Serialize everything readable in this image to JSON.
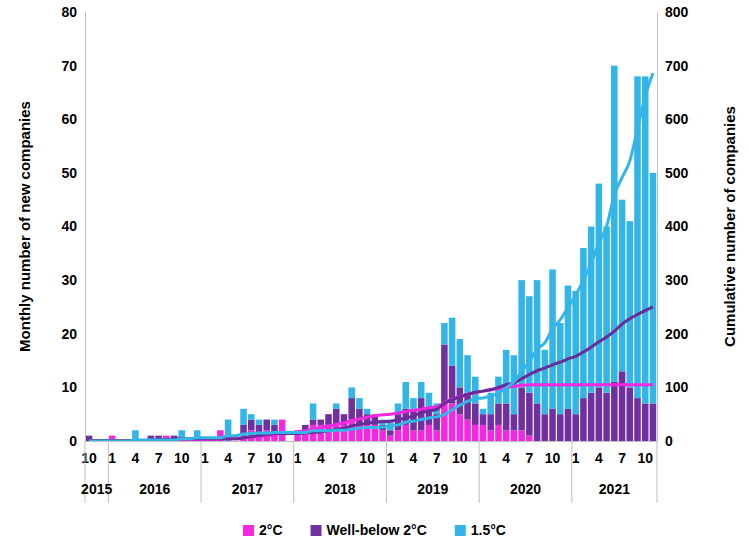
{
  "chart_data": {
    "type": "bar",
    "stacked": true,
    "grid": false,
    "legend": "bottom",
    "y_label": "Monthly number of new companies",
    "y2_label": "Cumulative number of companies",
    "categories": [
      "10",
      null,
      null,
      "1",
      null,
      null,
      "4",
      null,
      null,
      "7",
      null,
      null,
      "10",
      null,
      null,
      "1",
      null,
      null,
      "4",
      null,
      null,
      "7",
      null,
      null,
      "10",
      null,
      null,
      "1",
      null,
      null,
      "4",
      null,
      null,
      "7",
      null,
      null,
      "10",
      null,
      null,
      "1",
      null,
      null,
      "4",
      null,
      null,
      "7",
      null,
      null,
      "10",
      null,
      null,
      "1",
      null,
      null,
      "4",
      null,
      null,
      "7",
      null,
      null,
      "10",
      null,
      null,
      "1",
      null,
      null,
      "4",
      null,
      null,
      "7",
      null,
      null,
      "10",
      null
    ],
    "groups": [
      {
        "label": "2015",
        "count": 3
      },
      {
        "label": "2016",
        "count": 12
      },
      {
        "label": "2017",
        "count": 12
      },
      {
        "label": "2018",
        "count": 12
      },
      {
        "label": "2019",
        "count": 12
      },
      {
        "label": "2020",
        "count": 12
      },
      {
        "label": "2021",
        "count": 11
      }
    ],
    "ylim": [
      0,
      80
    ],
    "yticks": [
      0,
      10,
      20,
      30,
      40,
      50,
      60,
      70,
      80
    ],
    "y2lim": [
      0,
      800
    ],
    "y2ticks": [
      0,
      100,
      200,
      300,
      400,
      500,
      600,
      700,
      800
    ],
    "series": [
      {
        "name": "2°C",
        "type": "bar",
        "color": "#f527e0",
        "values": [
          0,
          0,
          0,
          1,
          0,
          0,
          0,
          0,
          0,
          0,
          1,
          0,
          0,
          0,
          0,
          0,
          0,
          2,
          0,
          0,
          1,
          2,
          1,
          2,
          1,
          4,
          0,
          2,
          2,
          3,
          3,
          3,
          3,
          3,
          4,
          3,
          3,
          3,
          2,
          1,
          2,
          3,
          2,
          2,
          3,
          2,
          7,
          7,
          5,
          4,
          3,
          3,
          2,
          3,
          2,
          2,
          2,
          1,
          0,
          0,
          0,
          0,
          0,
          0,
          0,
          0,
          0,
          0,
          0,
          0,
          0,
          0,
          0,
          0
        ]
      },
      {
        "name": "Well-below 2°C",
        "type": "bar",
        "color": "#7030a0",
        "values": [
          1,
          0,
          0,
          0,
          0,
          0,
          0,
          0,
          1,
          1,
          0,
          1,
          0,
          0,
          0,
          0,
          0,
          0,
          0,
          0,
          2,
          2,
          2,
          2,
          2,
          0,
          0,
          0,
          1,
          1,
          1,
          2,
          3,
          2,
          4,
          3,
          2,
          2,
          1,
          1,
          3,
          3,
          4,
          6,
          3,
          3,
          11,
          7,
          5,
          5,
          4,
          2,
          3,
          4,
          5,
          3,
          8,
          8,
          7,
          5,
          6,
          5,
          6,
          5,
          8,
          9,
          10,
          9,
          11,
          13,
          10,
          8,
          7,
          7
        ]
      },
      {
        "name": "1.5°C",
        "type": "bar",
        "color": "#33b5e8",
        "values": [
          0,
          0,
          0,
          0,
          0,
          0,
          2,
          0,
          0,
          0,
          0,
          0,
          2,
          0,
          2,
          0,
          0,
          0,
          4,
          0,
          3,
          1,
          1,
          0,
          1,
          0,
          0,
          0,
          0,
          3,
          0,
          0,
          1,
          0,
          2,
          2,
          1,
          0,
          1,
          2,
          2,
          5,
          2,
          3,
          3,
          2,
          4,
          9,
          9,
          7,
          5,
          1,
          4,
          5,
          10,
          11,
          20,
          18,
          23,
          12,
          26,
          17,
          23,
          23,
          28,
          31,
          38,
          31,
          59,
          32,
          31,
          60,
          61,
          43
        ]
      },
      {
        "type": "line",
        "axis": "y2",
        "color": "#f527e0",
        "values": [
          0,
          0,
          0,
          1,
          1,
          1,
          1,
          1,
          1,
          1,
          2,
          2,
          2,
          2,
          2,
          2,
          2,
          4,
          4,
          4,
          5,
          7,
          8,
          10,
          11,
          15,
          15,
          17,
          19,
          22,
          25,
          28,
          31,
          34,
          38,
          41,
          44,
          47,
          49,
          50,
          52,
          55,
          57,
          59,
          62,
          64,
          71,
          78,
          83,
          87,
          90,
          93,
          95,
          98,
          100,
          102,
          104,
          105,
          105,
          105,
          105,
          105,
          105,
          105,
          105,
          105,
          105,
          105,
          105,
          105,
          105,
          105,
          105,
          105
        ]
      },
      {
        "type": "line",
        "axis": "y2",
        "color": "#6a2c98",
        "values": [
          1,
          1,
          1,
          1,
          1,
          1,
          1,
          1,
          2,
          3,
          3,
          4,
          4,
          4,
          4,
          4,
          4,
          4,
          4,
          4,
          6,
          8,
          10,
          12,
          14,
          14,
          14,
          14,
          15,
          16,
          17,
          19,
          22,
          24,
          28,
          31,
          33,
          35,
          36,
          37,
          40,
          43,
          47,
          53,
          56,
          59,
          70,
          77,
          82,
          87,
          91,
          93,
          96,
          100,
          105,
          108,
          116,
          124,
          131,
          136,
          142,
          147,
          153,
          158,
          166,
          175,
          185,
          194,
          205,
          218,
          228,
          236,
          243,
          250
        ]
      },
      {
        "type": "line",
        "axis": "y2",
        "color": "#33b5e8",
        "values": [
          0,
          0,
          0,
          0,
          0,
          0,
          2,
          2,
          2,
          2,
          2,
          2,
          4,
          4,
          6,
          6,
          6,
          6,
          10,
          10,
          13,
          14,
          15,
          15,
          16,
          16,
          16,
          16,
          16,
          19,
          19,
          19,
          20,
          20,
          22,
          24,
          25,
          25,
          26,
          28,
          30,
          35,
          37,
          40,
          43,
          45,
          49,
          58,
          67,
          74,
          79,
          80,
          84,
          89,
          99,
          110,
          130,
          148,
          171,
          183,
          209,
          226,
          249,
          272,
          300,
          331,
          369,
          400,
          459,
          491,
          522,
          582,
          643,
          686
        ]
      }
    ]
  }
}
